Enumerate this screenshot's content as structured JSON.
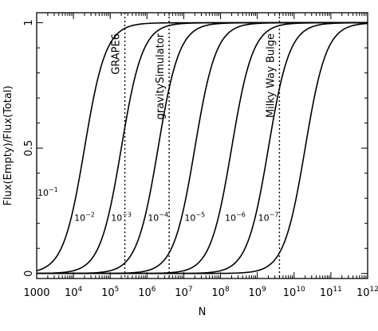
{
  "chart_data": {
    "type": "line",
    "xlabel": "N",
    "ylabel": "Flux(Empty)/Flux(Total)",
    "xscale": "log",
    "xlim": [
      1000,
      1000000000000
    ],
    "ylim": [
      -0.02,
      1.04
    ],
    "x_ticks": [
      {
        "value": 1000,
        "base": "1000",
        "exp": ""
      },
      {
        "value": 10000,
        "base": "10",
        "exp": "4"
      },
      {
        "value": 100000,
        "base": "10",
        "exp": "5"
      },
      {
        "value": 1000000,
        "base": "10",
        "exp": "6"
      },
      {
        "value": 10000000,
        "base": "10",
        "exp": "7"
      },
      {
        "value": 100000000,
        "base": "10",
        "exp": "8"
      },
      {
        "value": 1000000000,
        "base": "10",
        "exp": "9"
      },
      {
        "value": 10000000000,
        "base": "10",
        "exp": "10"
      },
      {
        "value": 100000000000,
        "base": "10",
        "exp": "11"
      },
      {
        "value": 1000000000000,
        "base": "10",
        "exp": "12"
      }
    ],
    "y_ticks": [
      {
        "value": 0,
        "label": "0"
      },
      {
        "value": 0.5,
        "label": "0.5"
      },
      {
        "value": 1,
        "label": "1"
      }
    ],
    "series": [
      {
        "name": "10⁻¹",
        "label_base": "10",
        "label_exp": "−1",
        "steepness": 1.5,
        "x_half": 20000,
        "label_at": [
          2000,
          0.31
        ]
      },
      {
        "name": "10⁻²",
        "label_base": "10",
        "label_exp": "−2",
        "steepness": 1.5,
        "x_half": 200000,
        "label_at": [
          20000,
          0.21
        ]
      },
      {
        "name": "10⁻³",
        "label_base": "10",
        "label_exp": "−3",
        "steepness": 1.5,
        "x_half": 2000000,
        "label_at": [
          200000,
          0.21
        ]
      },
      {
        "name": "10⁻⁴",
        "label_base": "10",
        "label_exp": "−4",
        "steepness": 1.5,
        "x_half": 20000000,
        "label_at": [
          2000000,
          0.21
        ]
      },
      {
        "name": "10⁻⁵",
        "label_base": "10",
        "label_exp": "−5",
        "steepness": 1.5,
        "x_half": 200000000,
        "label_at": [
          20000000,
          0.21
        ]
      },
      {
        "name": "10⁻⁶",
        "label_base": "10",
        "label_exp": "−6",
        "steepness": 1.5,
        "x_half": 2000000000,
        "label_at": [
          250000000,
          0.21
        ]
      },
      {
        "name": "10⁻⁷",
        "label_base": "10",
        "label_exp": "−7",
        "steepness": 1.5,
        "x_half": 20000000000,
        "label_at": [
          2000000000,
          0.21
        ]
      }
    ],
    "vertical_lines": [
      {
        "label": "GRAPE6",
        "x": 250000
      },
      {
        "label": "gravitySimulator",
        "x": 4000000
      },
      {
        "label": "Milky Way Bulge",
        "x": 4000000000
      }
    ]
  }
}
